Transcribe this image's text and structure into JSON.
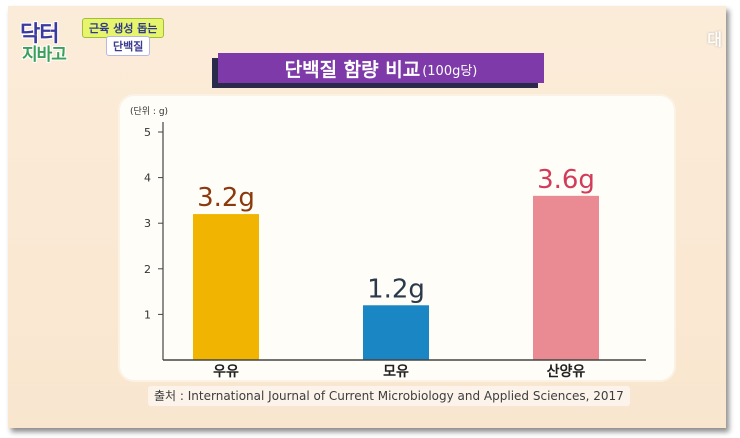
{
  "show": {
    "logo_line1": "닥터",
    "logo_line2": "지바고",
    "caption_line1": "근육 생성 돕는",
    "caption_line2": "단백질",
    "watermark": "대"
  },
  "colors": {
    "banner": "#7d3aa8",
    "cow_milk": "#f1b400",
    "breast_milk": "#1a86c4",
    "goat_milk": "#ea8a93",
    "label_cow": "#8b3a0e",
    "label_breast": "#2a3a4a",
    "label_goat": "#d23c5a"
  },
  "chart_data": {
    "type": "bar",
    "title": "단백질 함량 비교",
    "subtitle": "(100g당)",
    "unit_label": "(단위 : g)",
    "categories": [
      "우유",
      "모유",
      "산양유"
    ],
    "values": [
      3.2,
      1.2,
      3.6
    ],
    "data_labels": [
      "3.2g",
      "1.2g",
      "3.6g"
    ],
    "yticks": [
      1,
      2,
      3,
      4,
      5
    ],
    "ylim": [
      0,
      5
    ],
    "grid": false,
    "legend": "none",
    "source": "출처 : International Journal of Current Microbiology and Applied Sciences, 2017"
  }
}
